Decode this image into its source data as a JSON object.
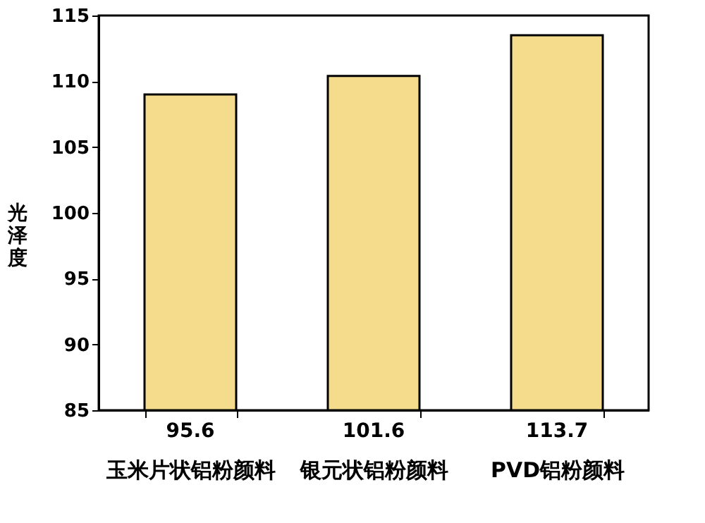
{
  "chart_data": {
    "type": "bar",
    "ylabel": "光泽度",
    "categories": [
      "玉米片状铝粉颜料",
      "银元状铝粉颜料",
      "PVD铝粉颜料"
    ],
    "values": [
      109.0,
      110.4,
      113.5
    ],
    "annotations": [
      "95.6",
      "101.6",
      "113.7"
    ],
    "color": "#f5dc8c",
    "ylim": [
      85,
      115
    ],
    "yticks": [
      85,
      90,
      95,
      100,
      105,
      110,
      115
    ],
    "grid": false
  }
}
